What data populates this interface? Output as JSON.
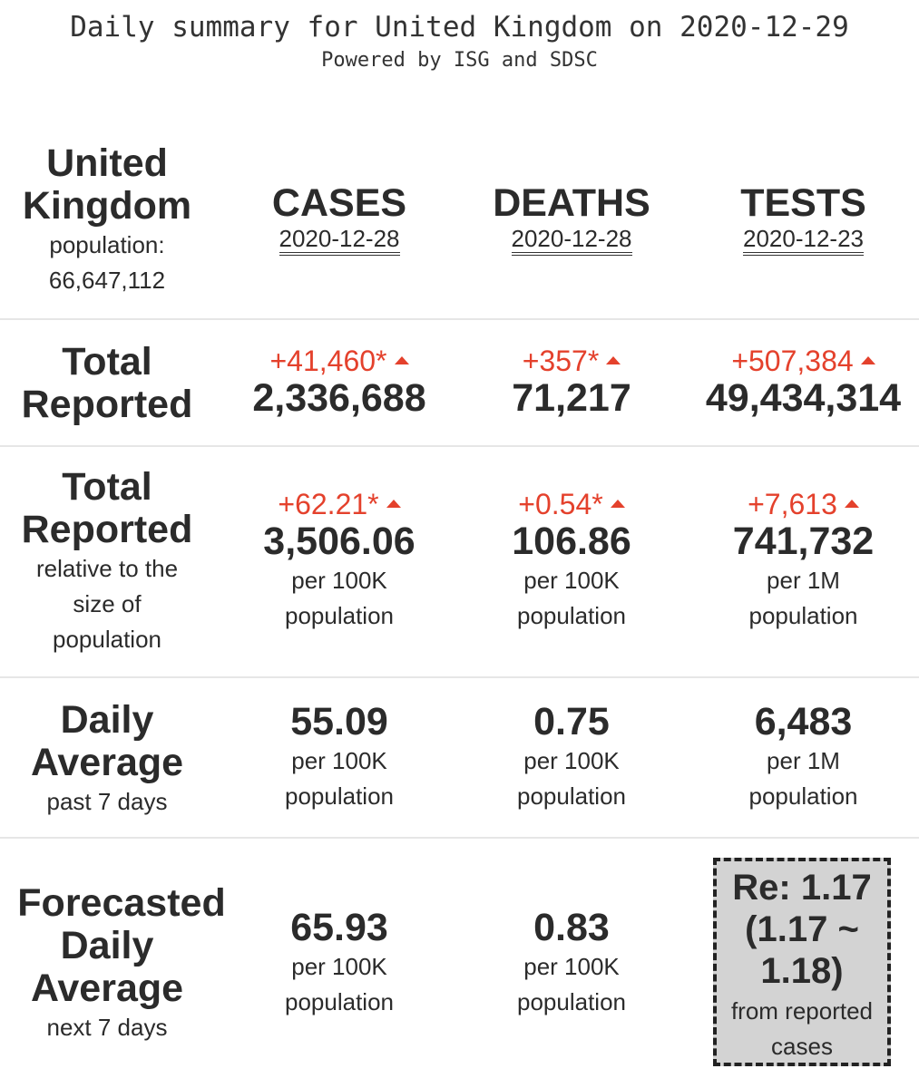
{
  "header": {
    "title": "Daily summary for United Kingdom on 2020-12-29",
    "subtitle": "Powered by ISG and SDSC"
  },
  "region": {
    "name_line1": "United",
    "name_line2": "Kingdom",
    "population_label": "population:",
    "population_value": "66,647,112"
  },
  "columns": {
    "cases": {
      "label": "CASES",
      "date": "2020-12-28"
    },
    "deaths": {
      "label": "DEATHS",
      "date": "2020-12-28"
    },
    "tests": {
      "label": "TESTS",
      "date": "2020-12-23"
    }
  },
  "total_reported": {
    "label_line1": "Total",
    "label_line2": "Reported",
    "cases": {
      "delta": "+41,460*",
      "value": "2,336,688"
    },
    "deaths": {
      "delta": "+357*",
      "value": "71,217"
    },
    "tests": {
      "delta": "+507,384",
      "value": "49,434,314"
    }
  },
  "relative": {
    "label_line1": "Total",
    "label_line2": "Reported",
    "sub_line1": "relative to the",
    "sub_line2": "size of",
    "sub_line3": "population",
    "cases": {
      "delta": "+62.21*",
      "value": "3,506.06",
      "unit_line1": "per 100K",
      "unit_line2": "population"
    },
    "deaths": {
      "delta": "+0.54*",
      "value": "106.86",
      "unit_line1": "per 100K",
      "unit_line2": "population"
    },
    "tests": {
      "delta": "+7,613",
      "value": "741,732",
      "unit_line1": "per 1M",
      "unit_line2": "population"
    }
  },
  "daily_average": {
    "label_line1": "Daily",
    "label_line2": "Average",
    "sub": "past 7 days",
    "cases": {
      "value": "55.09",
      "unit_line1": "per 100K",
      "unit_line2": "population"
    },
    "deaths": {
      "value": "0.75",
      "unit_line1": "per 100K",
      "unit_line2": "population"
    },
    "tests": {
      "value": "6,483",
      "unit_line1": "per 1M",
      "unit_line2": "population"
    }
  },
  "forecast": {
    "label_line1": "Forecasted",
    "label_line2": "Daily",
    "label_line3": "Average",
    "sub": "next 7 days",
    "cases": {
      "value": "65.93",
      "unit_line1": "per 100K",
      "unit_line2": "population"
    },
    "deaths": {
      "value": "0.83",
      "unit_line1": "per 100K",
      "unit_line2": "population"
    },
    "re": {
      "line1": "Re: 1.17",
      "line2": "(1.17 ~",
      "line3": "1.18)",
      "sub_line1": "from reported",
      "sub_line2": "cases"
    }
  },
  "colors": {
    "increase": "#e4412c",
    "text": "#2b2b2b",
    "divider": "#e6e6e6",
    "re_box_bg": "#d3d3d3"
  },
  "icons": {
    "increase": "triangle-up-icon"
  }
}
